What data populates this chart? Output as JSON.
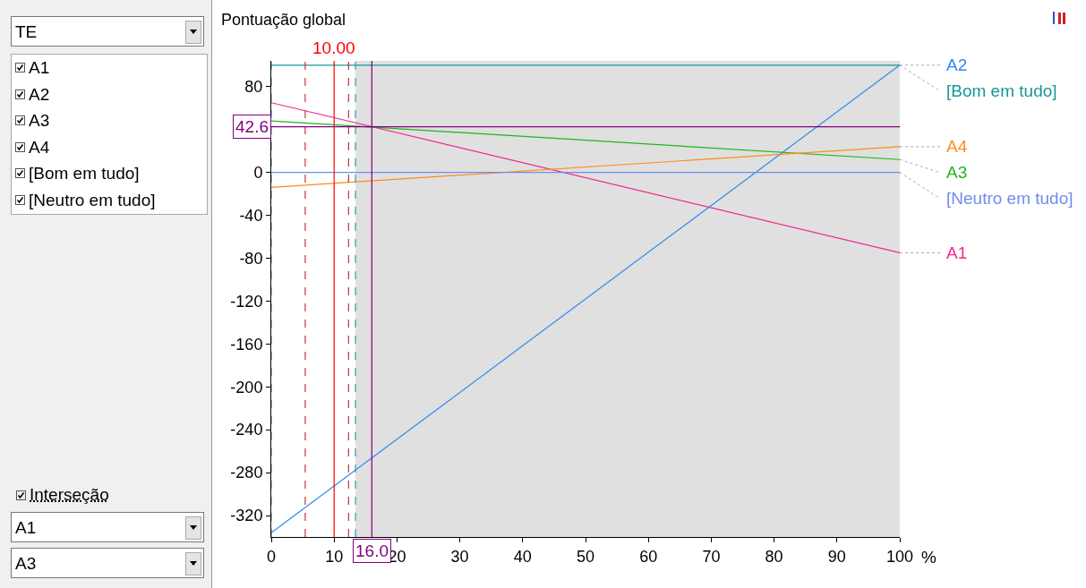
{
  "chart_data": {
    "type": "line",
    "ylabel": "Pontuação global",
    "xlabel": "%",
    "x": [
      0,
      100
    ],
    "xlim": [
      0,
      100
    ],
    "xticks": [
      0,
      10,
      20,
      30,
      40,
      50,
      60,
      70,
      80,
      90,
      100
    ],
    "ylim": [
      -340,
      104
    ],
    "yticks": [
      -320,
      -280,
      -240,
      -200,
      -160,
      -120,
      -80,
      -40,
      0,
      {
        "value": 40,
        "label": null
      },
      80
    ],
    "grid": false,
    "legend": false,
    "marker": "none",
    "line_style": "solid",
    "series": [
      {
        "name": "A1",
        "color": "#f0288c",
        "values": [
          65,
          -75
        ]
      },
      {
        "name": "A2",
        "color": "#2a8cf0",
        "values": [
          -336,
          100
        ]
      },
      {
        "name": "A3",
        "color": "#1fb41f",
        "values": [
          48,
          12
        ]
      },
      {
        "name": "A4",
        "color": "#ff8c1a",
        "values": [
          -14,
          24
        ]
      },
      {
        "name": "[Bom em tudo]",
        "color": "#1a9696",
        "values": [
          100,
          100
        ]
      },
      {
        "name": "[Neutro em tudo]",
        "color": "#6e8cf0",
        "values": [
          0,
          0
        ]
      }
    ],
    "bands": [
      {
        "axis": "x",
        "from": 13.4,
        "to": 100,
        "label": null,
        "color": "#e0e0e0"
      }
    ],
    "ref_lines": [
      {
        "axis": "x",
        "value": 10,
        "label": "10.00",
        "color": "#ff0000",
        "line_style": "solid"
      },
      {
        "axis": "x",
        "value": 5.4,
        "label": null,
        "color": "#d03030",
        "line_style": "dashed"
      },
      {
        "axis": "x",
        "value": 12.3,
        "label": null,
        "color": "#d03030",
        "line_style": "dashed"
      },
      {
        "axis": "x",
        "value": 0,
        "label": null,
        "color": "#2a9aaa",
        "line_style": "dashed"
      },
      {
        "axis": "x",
        "value": 13.4,
        "label": null,
        "color": "#2a9aaa",
        "line_style": "dashed"
      },
      {
        "axis": "x",
        "value": 16,
        "label": null,
        "color": "#800080",
        "line_style": "solid"
      },
      {
        "axis": "y",
        "value": 42.6,
        "label": null,
        "color": "#800080",
        "line_style": "solid"
      }
    ],
    "annotations": [
      "TE",
      "Interseção",
      "A1",
      "A3",
      {
        "text": "16.0",
        "x": 16,
        "y": -340
      },
      {
        "text": "42.6",
        "x": 0,
        "y": 42.6
      }
    ]
  }
}
